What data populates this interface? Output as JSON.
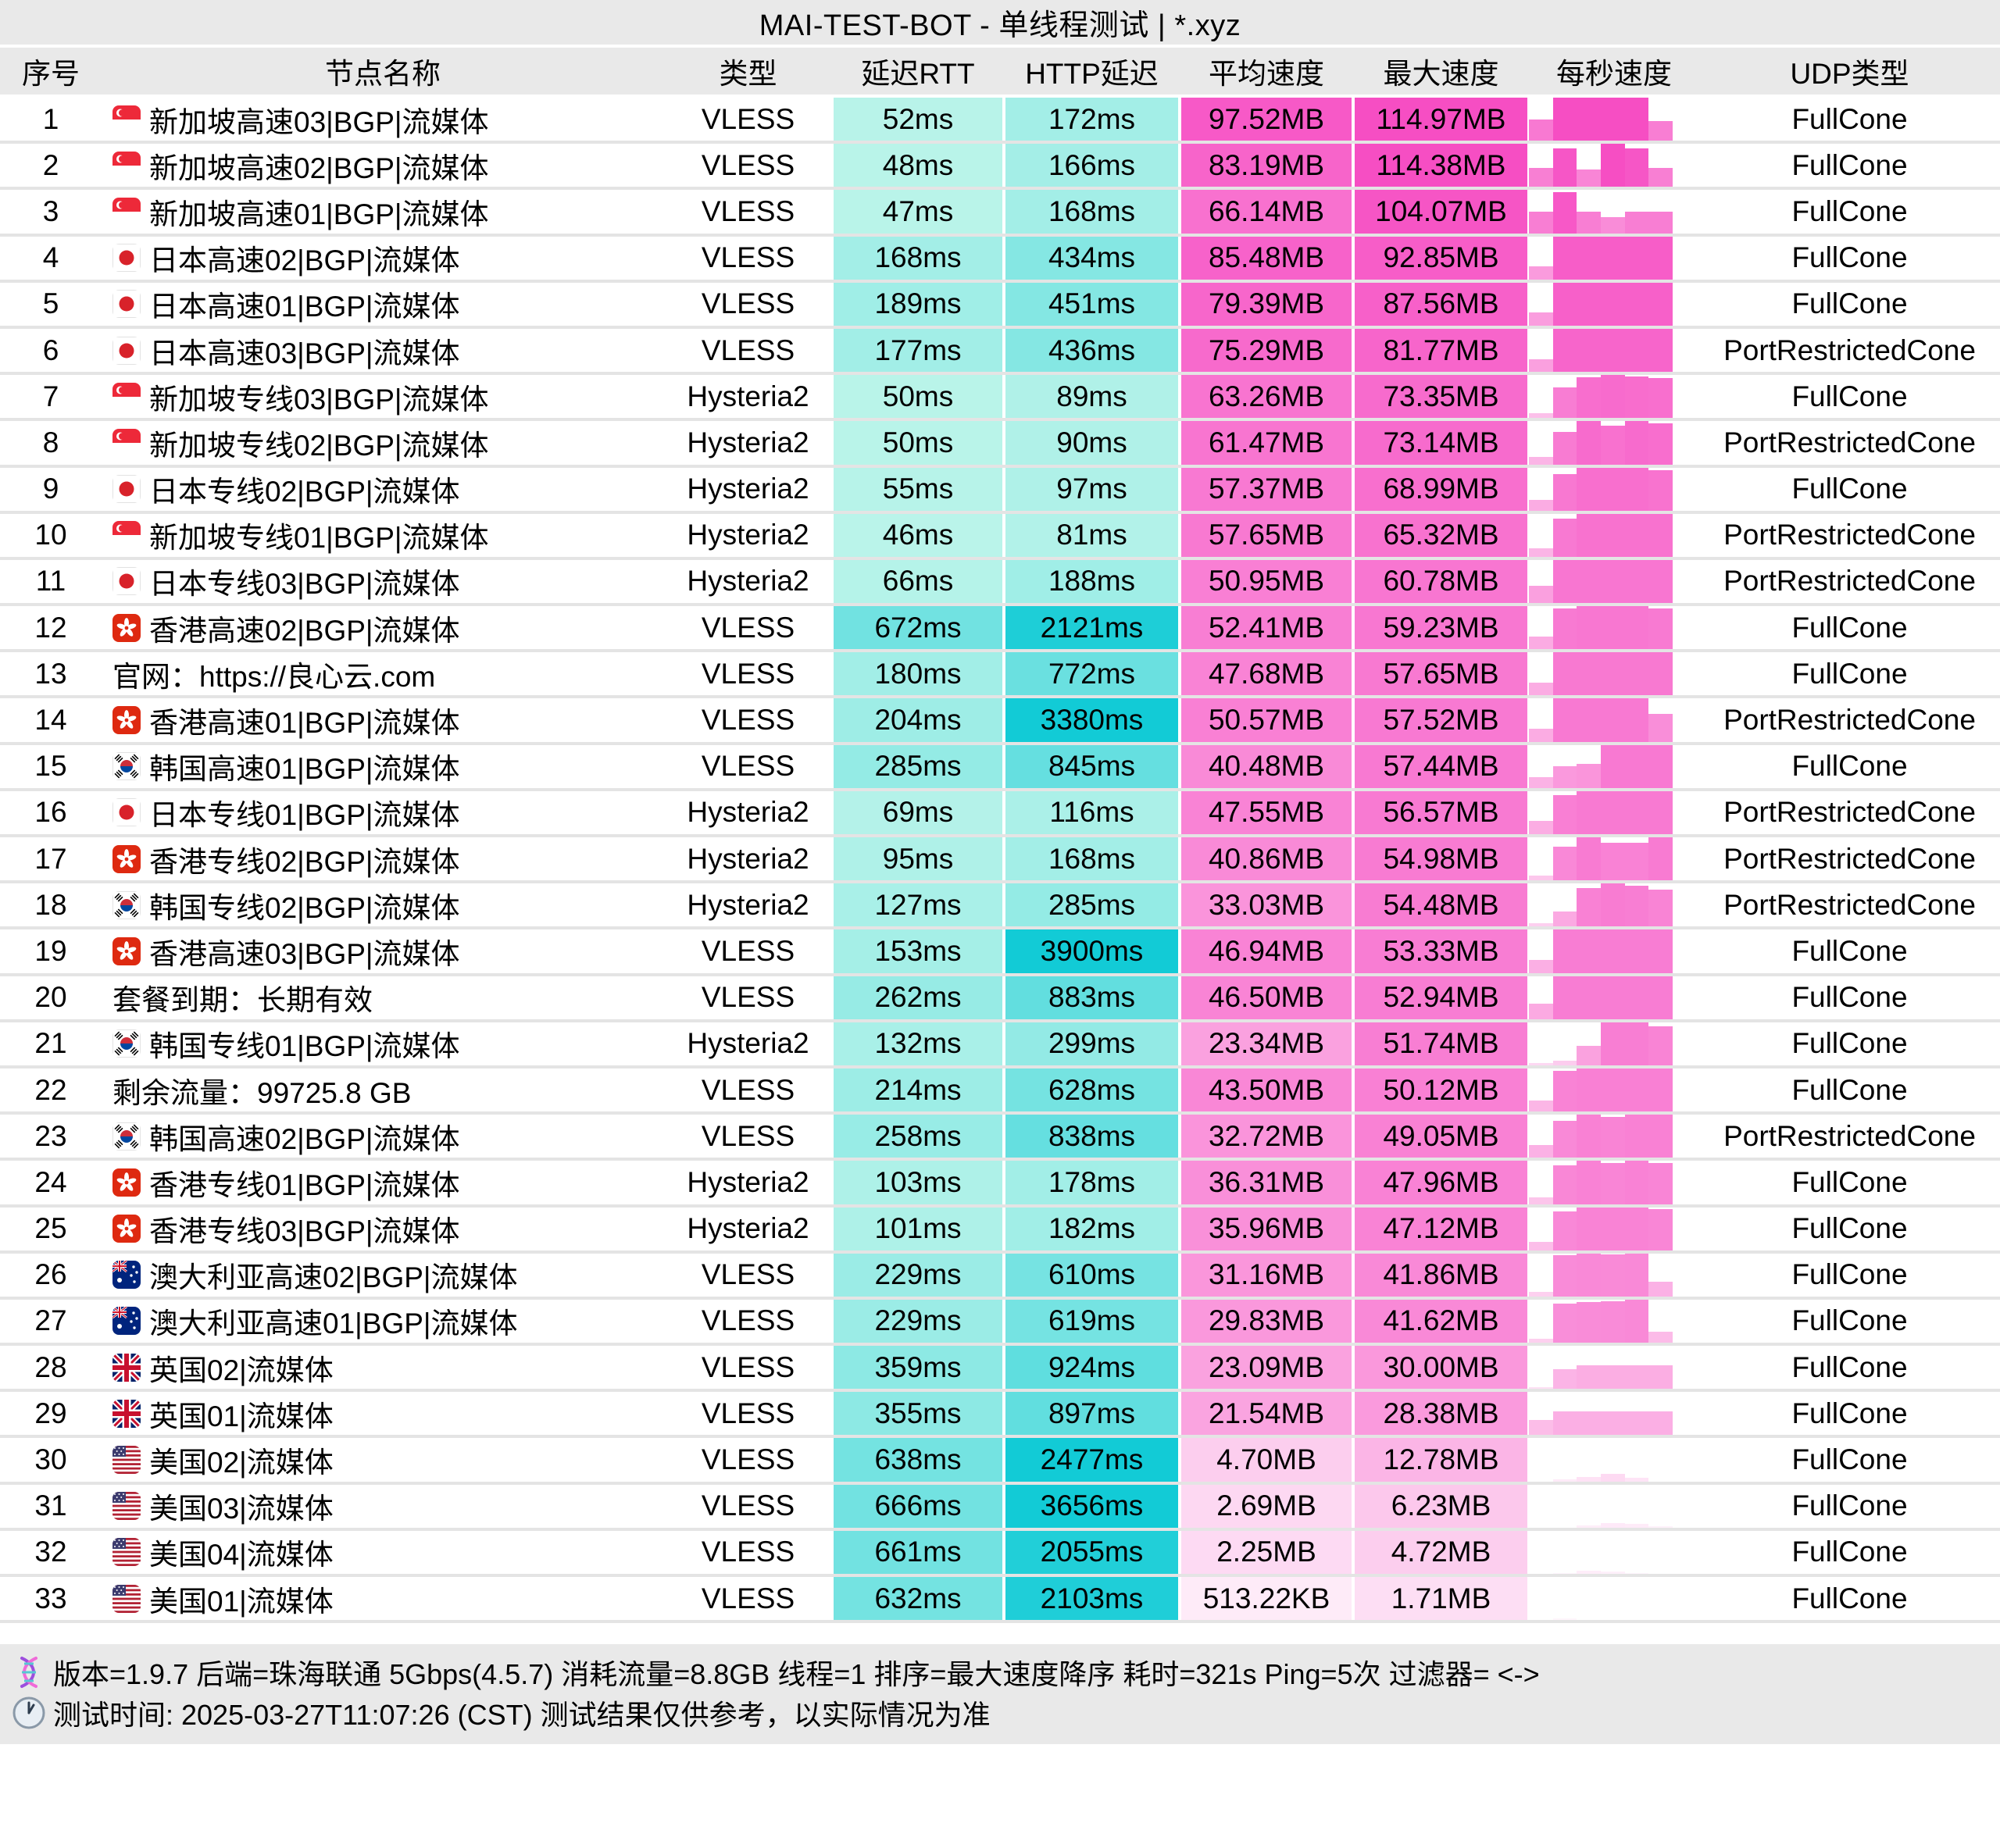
{
  "chart_data": {
    "type": "table",
    "title": "MAI-TEST-BOT - 单线程测试 | *.xyz",
    "columns": [
      "序号",
      "节点名称",
      "类型",
      "延迟RTT",
      "HTTP延迟",
      "平均速度",
      "最大速度",
      "每秒速度",
      "UDP类型"
    ],
    "rows": [
      {
        "index": "1",
        "flag": "sg",
        "name": "新加坡高速03|BGP|流媒体",
        "type": "VLESS",
        "rtt": "52ms",
        "rtt_ms": 52,
        "http": "172ms",
        "http_ms": 172,
        "avg": "97.52MB",
        "avg_mb": 97.52,
        "max": "114.97MB",
        "max_mb": 114.97,
        "bars": [
          0.5,
          1,
          1,
          1,
          1,
          0.45
        ],
        "udp": "FullCone"
      },
      {
        "index": "2",
        "flag": "sg",
        "name": "新加坡高速02|BGP|流媒体",
        "type": "VLESS",
        "rtt": "48ms",
        "rtt_ms": 48,
        "http": "166ms",
        "http_ms": 166,
        "avg": "83.19MB",
        "avg_mb": 83.19,
        "max": "114.38MB",
        "max_mb": 114.38,
        "bars": [
          0.45,
          0.9,
          0.4,
          1,
          0.9,
          0.45
        ],
        "udp": "FullCone"
      },
      {
        "index": "3",
        "flag": "sg",
        "name": "新加坡高速01|BGP|流媒体",
        "type": "VLESS",
        "rtt": "47ms",
        "rtt_ms": 47,
        "http": "168ms",
        "http_ms": 168,
        "avg": "66.14MB",
        "avg_mb": 66.14,
        "max": "104.07MB",
        "max_mb": 104.07,
        "bars": [
          0.5,
          0.95,
          0.5,
          0.38,
          0.5,
          0.5
        ],
        "udp": "FullCone"
      },
      {
        "index": "4",
        "flag": "jp",
        "name": "日本高速02|BGP|流媒体",
        "type": "VLESS",
        "rtt": "168ms",
        "rtt_ms": 168,
        "http": "434ms",
        "http_ms": 434,
        "avg": "85.48MB",
        "avg_mb": 85.48,
        "max": "92.85MB",
        "max_mb": 92.85,
        "bars": [
          0.3,
          1,
          1,
          1,
          1,
          1
        ],
        "udp": "FullCone"
      },
      {
        "index": "5",
        "flag": "jp",
        "name": "日本高速01|BGP|流媒体",
        "type": "VLESS",
        "rtt": "189ms",
        "rtt_ms": 189,
        "http": "451ms",
        "http_ms": 451,
        "avg": "79.39MB",
        "avg_mb": 79.39,
        "max": "87.56MB",
        "max_mb": 87.56,
        "bars": [
          0.3,
          1,
          1,
          1,
          1,
          1
        ],
        "udp": "FullCone"
      },
      {
        "index": "6",
        "flag": "jp",
        "name": "日本高速03|BGP|流媒体",
        "type": "VLESS",
        "rtt": "177ms",
        "rtt_ms": 177,
        "http": "436ms",
        "http_ms": 436,
        "avg": "75.29MB",
        "avg_mb": 75.29,
        "max": "81.77MB",
        "max_mb": 81.77,
        "bars": [
          0.3,
          1,
          1,
          1,
          1,
          1
        ],
        "udp": "PortRestrictedCone"
      },
      {
        "index": "7",
        "flag": "sg",
        "name": "新加坡专线03|BGP|流媒体",
        "type": "Hysteria2",
        "rtt": "50ms",
        "rtt_ms": 50,
        "http": "89ms",
        "http_ms": 89,
        "avg": "63.26MB",
        "avg_mb": 63.26,
        "max": "73.35MB",
        "max_mb": 73.35,
        "bars": [
          0.12,
          0.72,
          0.95,
          1,
          0.97,
          0.93
        ],
        "udp": "FullCone"
      },
      {
        "index": "8",
        "flag": "sg",
        "name": "新加坡专线02|BGP|流媒体",
        "type": "Hysteria2",
        "rtt": "50ms",
        "rtt_ms": 50,
        "http": "90ms",
        "http_ms": 90,
        "avg": "61.47MB",
        "avg_mb": 61.47,
        "max": "73.14MB",
        "max_mb": 73.14,
        "bars": [
          0.18,
          0.75,
          1,
          0.9,
          1,
          0.95
        ],
        "udp": "PortRestrictedCone"
      },
      {
        "index": "9",
        "flag": "jp",
        "name": "日本专线02|BGP|流媒体",
        "type": "Hysteria2",
        "rtt": "55ms",
        "rtt_ms": 55,
        "http": "97ms",
        "http_ms": 97,
        "avg": "57.37MB",
        "avg_mb": 57.37,
        "max": "68.99MB",
        "max_mb": 68.99,
        "bars": [
          0.25,
          0.85,
          1,
          1,
          1,
          0.93
        ],
        "udp": "FullCone"
      },
      {
        "index": "10",
        "flag": "sg",
        "name": "新加坡专线01|BGP|流媒体",
        "type": "Hysteria2",
        "rtt": "46ms",
        "rtt_ms": 46,
        "http": "81ms",
        "http_ms": 81,
        "avg": "57.65MB",
        "avg_mb": 57.65,
        "max": "65.32MB",
        "max_mb": 65.32,
        "bars": [
          0.2,
          0.88,
          1,
          1,
          1,
          1
        ],
        "udp": "PortRestrictedCone"
      },
      {
        "index": "11",
        "flag": "jp",
        "name": "日本专线03|BGP|流媒体",
        "type": "Hysteria2",
        "rtt": "66ms",
        "rtt_ms": 66,
        "http": "188ms",
        "http_ms": 188,
        "avg": "50.95MB",
        "avg_mb": 50.95,
        "max": "60.78MB",
        "max_mb": 60.78,
        "bars": [
          0.4,
          1,
          1,
          1,
          1,
          1
        ],
        "udp": "PortRestrictedCone"
      },
      {
        "index": "12",
        "flag": "hk",
        "name": "香港高速02|BGP|流媒体",
        "type": "VLESS",
        "rtt": "672ms",
        "rtt_ms": 672,
        "http": "2121ms",
        "http_ms": 2121,
        "avg": "52.41MB",
        "avg_mb": 52.41,
        "max": "59.23MB",
        "max_mb": 59.23,
        "bars": [
          0.3,
          0.95,
          1,
          1,
          1,
          0.95
        ],
        "udp": "FullCone"
      },
      {
        "index": "13",
        "flag": "",
        "name": "官网：https://良心云.com",
        "type": "VLESS",
        "rtt": "180ms",
        "rtt_ms": 180,
        "http": "772ms",
        "http_ms": 772,
        "avg": "47.68MB",
        "avg_mb": 47.68,
        "max": "57.65MB",
        "max_mb": 57.65,
        "bars": [
          0.3,
          1,
          1,
          1,
          1,
          1
        ],
        "udp": "FullCone"
      },
      {
        "index": "14",
        "flag": "hk",
        "name": "香港高速01|BGP|流媒体",
        "type": "VLESS",
        "rtt": "204ms",
        "rtt_ms": 204,
        "http": "3380ms",
        "http_ms": 3380,
        "avg": "50.57MB",
        "avg_mb": 50.57,
        "max": "57.52MB",
        "max_mb": 57.52,
        "bars": [
          0.3,
          1,
          1,
          1,
          1,
          0.65
        ],
        "udp": "PortRestrictedCone"
      },
      {
        "index": "15",
        "flag": "kr",
        "name": "韩国高速01|BGP|流媒体",
        "type": "VLESS",
        "rtt": "285ms",
        "rtt_ms": 285,
        "http": "845ms",
        "http_ms": 845,
        "avg": "40.48MB",
        "avg_mb": 40.48,
        "max": "57.44MB",
        "max_mb": 57.44,
        "bars": [
          0.25,
          0.5,
          0.55,
          1,
          1,
          1
        ],
        "udp": "FullCone"
      },
      {
        "index": "16",
        "flag": "jp",
        "name": "日本专线01|BGP|流媒体",
        "type": "Hysteria2",
        "rtt": "69ms",
        "rtt_ms": 69,
        "http": "116ms",
        "http_ms": 116,
        "avg": "47.55MB",
        "avg_mb": 47.55,
        "max": "56.57MB",
        "max_mb": 56.57,
        "bars": [
          0.3,
          0.9,
          1,
          1,
          1,
          1
        ],
        "udp": "PortRestrictedCone"
      },
      {
        "index": "17",
        "flag": "hk",
        "name": "香港专线02|BGP|流媒体",
        "type": "Hysteria2",
        "rtt": "95ms",
        "rtt_ms": 95,
        "http": "168ms",
        "http_ms": 168,
        "avg": "40.86MB",
        "avg_mb": 40.86,
        "max": "54.98MB",
        "max_mb": 54.98,
        "bars": [
          0.12,
          0.78,
          1,
          0.88,
          0.88,
          1
        ],
        "udp": "PortRestrictedCone"
      },
      {
        "index": "18",
        "flag": "kr",
        "name": "韩国专线02|BGP|流媒体",
        "type": "Hysteria2",
        "rtt": "127ms",
        "rtt_ms": 127,
        "http": "285ms",
        "http_ms": 285,
        "avg": "33.03MB",
        "avg_mb": 33.03,
        "max": "54.48MB",
        "max_mb": 54.48,
        "bars": [
          0.08,
          0.35,
          0.9,
          1,
          0.95,
          0.85
        ],
        "udp": "PortRestrictedCone"
      },
      {
        "index": "19",
        "flag": "hk",
        "name": "香港高速03|BGP|流媒体",
        "type": "VLESS",
        "rtt": "153ms",
        "rtt_ms": 153,
        "http": "3900ms",
        "http_ms": 3900,
        "avg": "46.94MB",
        "avg_mb": 46.94,
        "max": "53.33MB",
        "max_mb": 53.33,
        "bars": [
          0.3,
          1,
          1,
          1,
          1,
          1
        ],
        "udp": "FullCone"
      },
      {
        "index": "20",
        "flag": "",
        "name": "套餐到期：长期有效",
        "type": "VLESS",
        "rtt": "262ms",
        "rtt_ms": 262,
        "http": "883ms",
        "http_ms": 883,
        "avg": "46.50MB",
        "avg_mb": 46.5,
        "max": "52.94MB",
        "max_mb": 52.94,
        "bars": [
          0.35,
          1,
          1,
          1,
          1,
          1
        ],
        "udp": "FullCone"
      },
      {
        "index": "21",
        "flag": "kr",
        "name": "韩国专线01|BGP|流媒体",
        "type": "Hysteria2",
        "rtt": "132ms",
        "rtt_ms": 132,
        "http": "299ms",
        "http_ms": 299,
        "avg": "23.34MB",
        "avg_mb": 23.34,
        "max": "51.74MB",
        "max_mb": 51.74,
        "bars": [
          0.05,
          0.1,
          0.45,
          1,
          1,
          0.9
        ],
        "udp": "FullCone"
      },
      {
        "index": "22",
        "flag": "",
        "name": "剩余流量：99725.8 GB",
        "type": "VLESS",
        "rtt": "214ms",
        "rtt_ms": 214,
        "http": "628ms",
        "http_ms": 628,
        "avg": "43.50MB",
        "avg_mb": 43.5,
        "max": "50.12MB",
        "max_mb": 50.12,
        "bars": [
          0.25,
          0.95,
          1,
          1,
          1,
          1
        ],
        "udp": "FullCone"
      },
      {
        "index": "23",
        "flag": "kr",
        "name": "韩国高速02|BGP|流媒体",
        "type": "VLESS",
        "rtt": "258ms",
        "rtt_ms": 258,
        "http": "838ms",
        "http_ms": 838,
        "avg": "32.72MB",
        "avg_mb": 32.72,
        "max": "49.05MB",
        "max_mb": 49.05,
        "bars": [
          0.3,
          0.85,
          1,
          0.95,
          1,
          1
        ],
        "udp": "PortRestrictedCone"
      },
      {
        "index": "24",
        "flag": "hk",
        "name": "香港专线01|BGP|流媒体",
        "type": "Hysteria2",
        "rtt": "103ms",
        "rtt_ms": 103,
        "http": "178ms",
        "http_ms": 178,
        "avg": "36.31MB",
        "avg_mb": 36.31,
        "max": "47.96MB",
        "max_mb": 47.96,
        "bars": [
          0.15,
          0.9,
          1,
          0.95,
          1,
          0.95
        ],
        "udp": "FullCone"
      },
      {
        "index": "25",
        "flag": "hk",
        "name": "香港专线03|BGP|流媒体",
        "type": "Hysteria2",
        "rtt": "101ms",
        "rtt_ms": 101,
        "http": "182ms",
        "http_ms": 182,
        "avg": "35.96MB",
        "avg_mb": 35.96,
        "max": "47.12MB",
        "max_mb": 47.12,
        "bars": [
          0.2,
          0.9,
          1,
          1,
          1,
          0.95
        ],
        "udp": "FullCone"
      },
      {
        "index": "26",
        "flag": "au",
        "name": "澳大利亚高速02|BGP|流媒体",
        "type": "VLESS",
        "rtt": "229ms",
        "rtt_ms": 229,
        "http": "610ms",
        "http_ms": 610,
        "avg": "31.16MB",
        "avg_mb": 31.16,
        "max": "41.86MB",
        "max_mb": 41.86,
        "bars": [
          0.1,
          0.95,
          1,
          0.97,
          1,
          0.35
        ],
        "udp": "FullCone"
      },
      {
        "index": "27",
        "flag": "au",
        "name": "澳大利亚高速01|BGP|流媒体",
        "type": "VLESS",
        "rtt": "229ms",
        "rtt_ms": 229,
        "http": "619ms",
        "http_ms": 619,
        "avg": "29.83MB",
        "avg_mb": 29.83,
        "max": "41.62MB",
        "max_mb": 41.62,
        "bars": [
          0.1,
          0.9,
          0.95,
          0.97,
          1,
          0.25
        ],
        "udp": "FullCone"
      },
      {
        "index": "28",
        "flag": "gb",
        "name": "英国02|流媒体",
        "type": "VLESS",
        "rtt": "359ms",
        "rtt_ms": 359,
        "http": "924ms",
        "http_ms": 924,
        "avg": "23.09MB",
        "avg_mb": 23.09,
        "max": "30.00MB",
        "max_mb": 30.0,
        "bars": [
          0.05,
          0.45,
          0.55,
          0.55,
          0.55,
          0.55
        ],
        "udp": "FullCone"
      },
      {
        "index": "29",
        "flag": "gb",
        "name": "英国01|流媒体",
        "type": "VLESS",
        "rtt": "355ms",
        "rtt_ms": 355,
        "http": "897ms",
        "http_ms": 897,
        "avg": "21.54MB",
        "avg_mb": 21.54,
        "max": "28.38MB",
        "max_mb": 28.38,
        "bars": [
          0.35,
          0.55,
          0.55,
          0.55,
          0.55,
          0.55
        ],
        "udp": "FullCone"
      },
      {
        "index": "30",
        "flag": "us",
        "name": "美国02|流媒体",
        "type": "VLESS",
        "rtt": "638ms",
        "rtt_ms": 638,
        "http": "2477ms",
        "http_ms": 2477,
        "avg": "4.70MB",
        "avg_mb": 4.7,
        "max": "12.78MB",
        "max_mb": 12.78,
        "bars": [
          0,
          0.04,
          0.1,
          0.18,
          0.08,
          0
        ],
        "udp": "FullCone"
      },
      {
        "index": "31",
        "flag": "us",
        "name": "美国03|流媒体",
        "type": "VLESS",
        "rtt": "666ms",
        "rtt_ms": 666,
        "http": "3656ms",
        "http_ms": 3656,
        "avg": "2.69MB",
        "avg_mb": 2.69,
        "max": "6.23MB",
        "max_mb": 6.23,
        "bars": [
          0,
          0,
          0.05,
          0.1,
          0.08,
          0.03
        ],
        "udp": "FullCone"
      },
      {
        "index": "32",
        "flag": "us",
        "name": "美国04|流媒体",
        "type": "VLESS",
        "rtt": "661ms",
        "rtt_ms": 661,
        "http": "2055ms",
        "http_ms": 2055,
        "avg": "2.25MB",
        "avg_mb": 2.25,
        "max": "4.72MB",
        "max_mb": 4.72,
        "bars": [
          0,
          0.02,
          0.08,
          0.05,
          0.02,
          0
        ],
        "udp": "FullCone"
      },
      {
        "index": "33",
        "flag": "us",
        "name": "美国01|流媒体",
        "type": "VLESS",
        "rtt": "632ms",
        "rtt_ms": 632,
        "http": "2103ms",
        "http_ms": 2103,
        "avg": "513.22KB",
        "avg_mb": 0.5,
        "max": "1.71MB",
        "max_mb": 1.71,
        "bars": [
          0,
          0.04,
          0.01,
          0,
          0,
          0
        ],
        "udp": "FullCone"
      }
    ],
    "layout": {
      "sort": "最大速度降序",
      "bars_per_row": 6
    }
  },
  "colors": {
    "band_bg": "#e9e9e9",
    "row_divider": "#e4e4e4",
    "latency_scale_low": "#cff9ec",
    "latency_scale_high": "#12cbd6",
    "speed_scale_low": "#ffffff",
    "speed_scale_high": "#f64ec3"
  },
  "footer": {
    "line1": "版本=1.9.7  后端=珠海联通 5Gbps(4.5.7)  消耗流量=8.8GB  线程=1  排序=最大速度降序  耗时=321s  Ping=5次  过滤器= <->",
    "line2": "测试时间: 2025-03-27T11:07:26 (CST)  测试结果仅供参考，以实际情况为准",
    "icons": [
      "dna-icon",
      "clock-icon"
    ]
  }
}
